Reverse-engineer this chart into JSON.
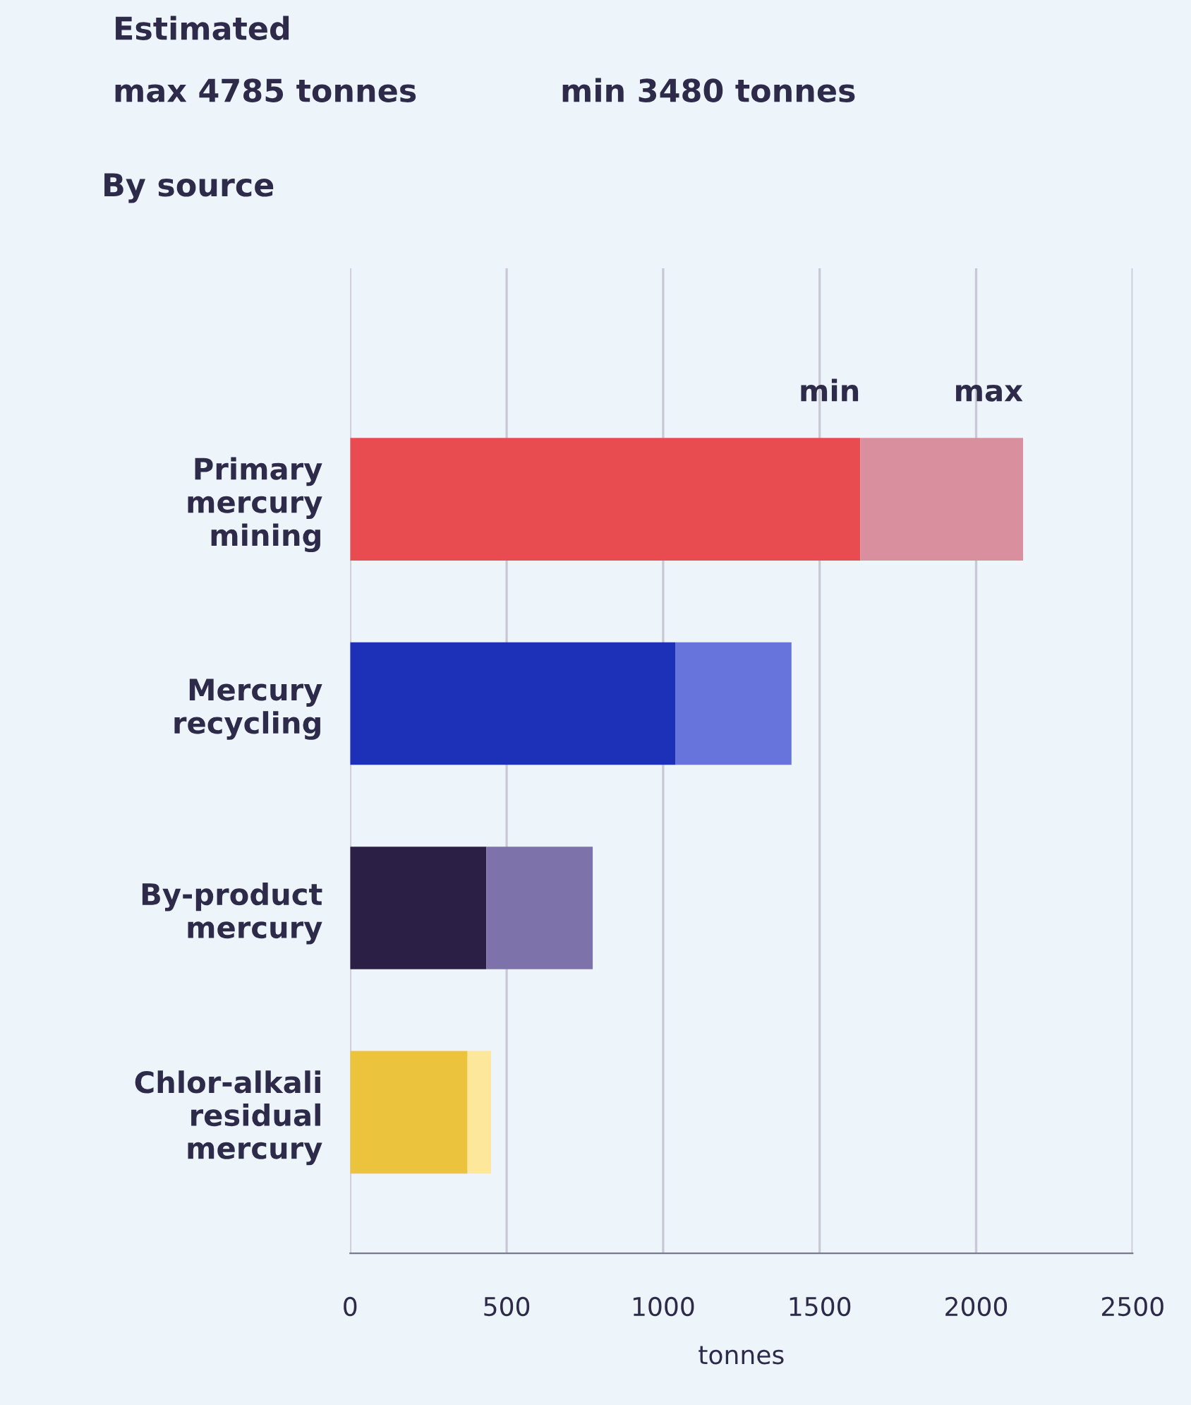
{
  "chart_data": {
    "type": "bar",
    "orientation": "horizontal",
    "stacked": true,
    "title": "Estimated",
    "annotations": [
      "max 4785 tonnes",
      "min 3480 tonnes",
      "By source"
    ],
    "categories": [
      "Primary\nmercury\nmining",
      "Mercury\nrecycling",
      "By-product\nmercury",
      "Chlor-alkali\nresidual\nmercury"
    ],
    "series": [
      {
        "name": "min",
        "colors": [
          "#e84b50",
          "#1c30b8",
          "#2c1f45",
          "#ecc33d"
        ],
        "values": [
          1630,
          1040,
          435,
          375
        ]
      },
      {
        "name": "max",
        "colors": [
          "#d98f9e",
          "#6674dc",
          "#7e72aa",
          "#fde79a"
        ],
        "values": [
          520,
          370,
          340,
          75
        ]
      }
    ],
    "xlabel": "tonnes",
    "xlim": [
      0,
      2500
    ],
    "xticks": [
      0,
      500,
      1000,
      1500,
      2000,
      2500
    ],
    "grid": "x",
    "legend": false
  }
}
